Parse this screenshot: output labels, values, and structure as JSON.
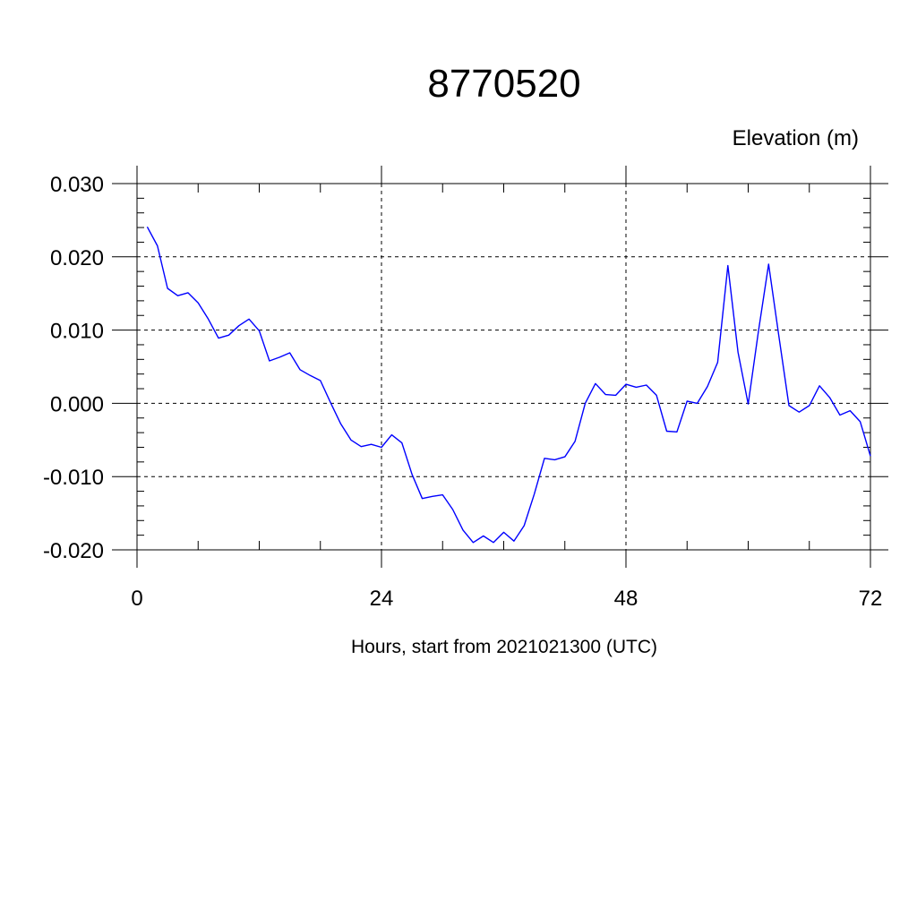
{
  "chart_data": {
    "type": "line",
    "title": "8770520",
    "ylabel": "Elevation (m)",
    "xlabel": "Hours, start from 2021021300 (UTC)",
    "xlim": [
      0,
      72
    ],
    "ylim": [
      -0.02,
      0.03
    ],
    "xticks": [
      0,
      24,
      48,
      72
    ],
    "xtick_labels": [
      "0",
      "24",
      "48",
      "72"
    ],
    "yticks": [
      -0.02,
      -0.01,
      0.0,
      0.01,
      0.02,
      0.03
    ],
    "ytick_labels": [
      "-0.020",
      "-0.010",
      "0.000",
      "0.010",
      "0.020",
      "0.030"
    ],
    "grid": true,
    "series_color": "#0000ff",
    "series": [
      {
        "x": [
          1,
          2,
          3,
          4,
          5,
          6,
          7,
          8,
          9,
          10,
          11,
          12,
          13,
          14,
          15,
          16,
          17,
          18,
          19,
          20,
          21,
          22,
          23,
          24,
          25,
          26,
          27,
          28,
          29,
          30,
          31,
          32,
          33,
          34,
          35,
          36,
          37,
          38,
          39,
          40,
          41,
          42,
          43,
          44,
          45,
          46,
          47,
          48,
          49,
          50,
          51,
          52,
          53,
          54,
          55,
          56,
          57,
          58,
          59,
          60,
          61,
          62,
          63,
          64,
          65,
          66,
          67,
          68,
          69,
          70,
          71,
          72
        ],
        "values": [
          0.0241,
          0.0215,
          0.0157,
          0.0147,
          0.0151,
          0.0137,
          0.0115,
          0.0089,
          0.0093,
          0.0106,
          0.0115,
          0.0099,
          0.0058,
          0.0063,
          0.0069,
          0.0046,
          0.0038,
          0.0031,
          0.0001,
          -0.0028,
          -0.005,
          -0.0059,
          -0.0056,
          -0.006,
          -0.0043,
          -0.0054,
          -0.0097,
          -0.013,
          -0.0127,
          -0.0125,
          -0.0145,
          -0.0173,
          -0.019,
          -0.0181,
          -0.019,
          -0.0176,
          -0.0188,
          -0.0167,
          -0.0124,
          -0.0075,
          -0.0077,
          -0.0073,
          -0.0052,
          0.0,
          0.0027,
          0.0012,
          0.0011,
          0.0026,
          0.0022,
          0.0025,
          0.0011,
          -0.0038,
          -0.0039,
          0.0003,
          0.0,
          0.0023,
          0.0056,
          0.0188,
          0.007,
          -0.0001,
          0.0098,
          0.019,
          0.0093,
          -0.0003,
          -0.0012,
          -0.0003,
          0.0024,
          0.0008,
          -0.0016,
          -0.001,
          -0.0025,
          -0.0072
        ]
      }
    ]
  }
}
